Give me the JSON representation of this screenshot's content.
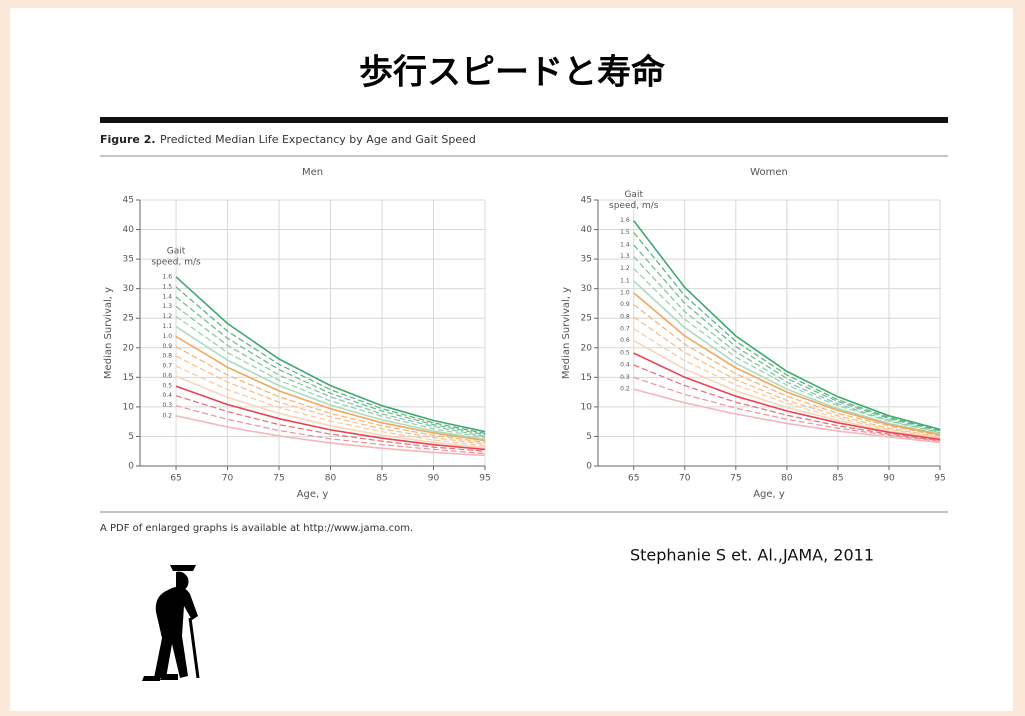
{
  "title": "歩行スピードと寿命",
  "figure_label": "Figure 2.",
  "figure_caption": "Predicted Median Life Expectancy by Age and Gait Speed",
  "footnote": "A PDF of enlarged graphs is available at http://www.jama.com.",
  "citation": "Stephanie S et. Al.,JAMA, 2011",
  "chart_data": [
    {
      "type": "line",
      "title": "Men",
      "x_label": "Age, y",
      "y_label": "Median Survival, y",
      "annotation": [
        "Gait",
        "speed, m/s"
      ],
      "x": [
        65,
        70,
        75,
        80,
        85,
        90,
        95
      ],
      "xlim": [
        61.5,
        95
      ],
      "xticks": [
        65,
        70,
        75,
        80,
        85,
        90,
        95
      ],
      "ylim": [
        0,
        45
      ],
      "yticks": [
        0,
        5,
        10,
        15,
        20,
        25,
        30,
        35,
        40,
        45
      ],
      "grid": true,
      "series": [
        {
          "name": "1.6",
          "color": "#3fa96e",
          "dashed": false,
          "values": [
            32,
            24.1,
            18.1,
            13.6,
            10.2,
            7.7,
            5.8
          ]
        },
        {
          "name": "1.5",
          "color": "#52b27c",
          "dashed": true,
          "values": [
            30.3,
            22.8,
            17.2,
            12.9,
            9.7,
            7.3,
            5.5
          ]
        },
        {
          "name": "1.4",
          "color": "#66bb8b",
          "dashed": true,
          "values": [
            28.6,
            21.6,
            16.3,
            12.3,
            9.3,
            7.0,
            5.3
          ]
        },
        {
          "name": "1.3",
          "color": "#7cc59b",
          "dashed": true,
          "values": [
            27.0,
            20.4,
            15.4,
            11.7,
            8.8,
            6.7,
            5.0
          ]
        },
        {
          "name": "1.2",
          "color": "#94d0ad",
          "dashed": true,
          "values": [
            25.3,
            19.2,
            14.5,
            11.0,
            8.4,
            6.3,
            4.8
          ]
        },
        {
          "name": "1.1",
          "color": "#acdbc0",
          "dashed": false,
          "values": [
            23.6,
            17.9,
            13.6,
            10.3,
            7.8,
            5.9,
            4.5
          ]
        },
        {
          "name": "1.0",
          "color": "#f2a65a",
          "dashed": false,
          "values": [
            21.9,
            16.7,
            12.7,
            9.7,
            7.3,
            5.6,
            4.3
          ]
        },
        {
          "name": "0.9",
          "color": "#f4b274",
          "dashed": true,
          "values": [
            20.2,
            15.4,
            11.7,
            8.9,
            6.8,
            5.2,
            4.0
          ]
        },
        {
          "name": "0.8",
          "color": "#f6bd8a",
          "dashed": true,
          "values": [
            18.6,
            14.2,
            10.8,
            8.3,
            6.3,
            4.8,
            3.7
          ]
        },
        {
          "name": "0.7",
          "color": "#f8c9a0",
          "dashed": true,
          "values": [
            16.9,
            12.9,
            9.9,
            7.6,
            5.8,
            4.4,
            3.4
          ]
        },
        {
          "name": "0.6",
          "color": "#fad6b8",
          "dashed": false,
          "values": [
            15.2,
            11.6,
            8.9,
            6.8,
            5.2,
            4.0,
            3.1
          ]
        },
        {
          "name": "0.5",
          "color": "#e8434f",
          "dashed": false,
          "values": [
            13.5,
            10.4,
            8.0,
            6.1,
            4.7,
            3.6,
            2.8
          ]
        },
        {
          "name": "0.4",
          "color": "#ec6a73",
          "dashed": true,
          "values": [
            11.9,
            9.2,
            7.0,
            5.4,
            4.2,
            3.2,
            2.5
          ]
        },
        {
          "name": "0.3",
          "color": "#f09198",
          "dashed": true,
          "values": [
            10.2,
            7.9,
            6.0,
            4.6,
            3.6,
            2.8,
            2.1
          ]
        },
        {
          "name": "0.2",
          "color": "#f5b6bb",
          "dashed": false,
          "values": [
            8.5,
            6.6,
            5.1,
            3.9,
            3.0,
            2.3,
            1.8
          ]
        }
      ]
    },
    {
      "type": "line",
      "title": "Women",
      "x_label": "Age, y",
      "y_label": "Median Survival, y",
      "annotation": [
        "Gait",
        "speed, m/s"
      ],
      "x": [
        65,
        70,
        75,
        80,
        85,
        90,
        95
      ],
      "xlim": [
        61.5,
        95
      ],
      "xticks": [
        65,
        70,
        75,
        80,
        85,
        90,
        95
      ],
      "ylim": [
        0,
        45
      ],
      "yticks": [
        0,
        5,
        10,
        15,
        20,
        25,
        30,
        35,
        40,
        45
      ],
      "grid": true,
      "series": [
        {
          "name": "1.6",
          "color": "#3fa96e",
          "dashed": false,
          "values": [
            41.5,
            30.2,
            22.0,
            16.0,
            11.7,
            8.5,
            6.2
          ]
        },
        {
          "name": "1.5",
          "color": "#52b27c",
          "dashed": true,
          "values": [
            39.5,
            28.8,
            21.1,
            15.4,
            11.2,
            8.2,
            6.0
          ]
        },
        {
          "name": "1.4",
          "color": "#66bb8b",
          "dashed": true,
          "values": [
            37.4,
            27.5,
            20.2,
            14.8,
            10.9,
            8.0,
            5.9
          ]
        },
        {
          "name": "1.3",
          "color": "#7cc59b",
          "dashed": true,
          "values": [
            35.4,
            26.1,
            19.3,
            14.2,
            10.5,
            7.7,
            5.7
          ]
        },
        {
          "name": "1.2",
          "color": "#94d0ad",
          "dashed": true,
          "values": [
            33.4,
            24.8,
            18.4,
            13.7,
            10.2,
            7.6,
            5.6
          ]
        },
        {
          "name": "1.1",
          "color": "#acdbc0",
          "dashed": false,
          "values": [
            31.3,
            23.4,
            17.4,
            13.0,
            9.7,
            7.2,
            5.4
          ]
        },
        {
          "name": "1.0",
          "color": "#f2a65a",
          "dashed": false,
          "values": [
            29.3,
            22.0,
            16.6,
            12.5,
            9.4,
            7.0,
            5.3
          ]
        },
        {
          "name": "0.9",
          "color": "#f4b274",
          "dashed": true,
          "values": [
            27.3,
            20.6,
            15.6,
            11.8,
            8.9,
            6.8,
            5.1
          ]
        },
        {
          "name": "0.8",
          "color": "#f6bd8a",
          "dashed": true,
          "values": [
            25.2,
            19.2,
            14.6,
            11.1,
            8.5,
            6.4,
            4.9
          ]
        },
        {
          "name": "0.7",
          "color": "#f8c9a0",
          "dashed": true,
          "values": [
            23.2,
            17.8,
            13.7,
            10.6,
            8.1,
            6.2,
            4.8
          ]
        },
        {
          "name": "0.6",
          "color": "#fad6b8",
          "dashed": false,
          "values": [
            21.2,
            16.4,
            12.7,
            9.9,
            7.7,
            5.9,
            4.6
          ]
        },
        {
          "name": "0.5",
          "color": "#e8434f",
          "dashed": false,
          "values": [
            19.1,
            15.0,
            11.8,
            9.3,
            7.3,
            5.7,
            4.5
          ]
        },
        {
          "name": "0.4",
          "color": "#ec6a73",
          "dashed": true,
          "values": [
            17.1,
            13.6,
            10.8,
            8.6,
            6.8,
            5.4,
            4.3
          ]
        },
        {
          "name": "0.3",
          "color": "#f09198",
          "dashed": true,
          "values": [
            15.0,
            12.1,
            9.8,
            7.9,
            6.4,
            5.2,
            4.2
          ]
        },
        {
          "name": "0.2",
          "color": "#f5b6bb",
          "dashed": false,
          "values": [
            13.0,
            10.7,
            8.8,
            7.2,
            5.9,
            4.9,
            4.0
          ]
        }
      ]
    }
  ]
}
